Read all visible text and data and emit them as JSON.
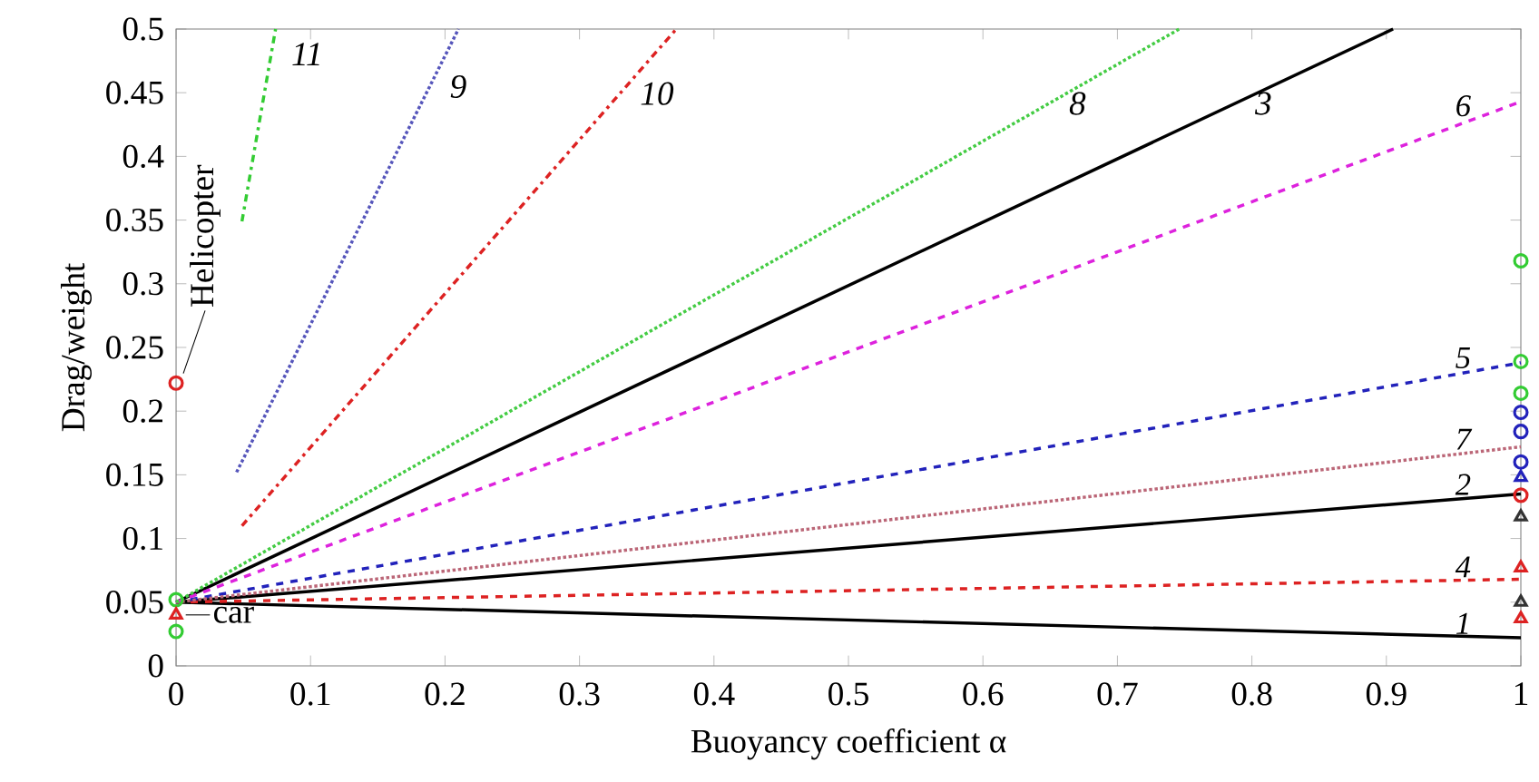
{
  "chart_data": {
    "type": "line",
    "xlabel": "Buoyancy coefficient α",
    "ylabel": "Drag/weight",
    "xlim": [
      0,
      1
    ],
    "ylim": [
      0,
      0.5
    ],
    "xticks": [
      0,
      0.1,
      0.2,
      0.3,
      0.4,
      0.5,
      0.6,
      0.7,
      0.8,
      0.9,
      1
    ],
    "yticks": [
      0,
      0.05,
      0.1,
      0.15,
      0.2,
      0.25,
      0.3,
      0.35,
      0.4,
      0.45,
      0.5
    ],
    "grid": false,
    "series": [
      {
        "name": "1",
        "color": "#000000",
        "line_style": "solid",
        "x": [
          0,
          1
        ],
        "values": [
          0.05,
          0.022
        ]
      },
      {
        "name": "2",
        "color": "#000000",
        "line_style": "solid",
        "x": [
          0,
          1
        ],
        "values": [
          0.05,
          0.135
        ]
      },
      {
        "name": "3",
        "color": "#000000",
        "line_style": "solid",
        "x": [
          0,
          0.905
        ],
        "values": [
          0.05,
          0.5
        ]
      },
      {
        "name": "4",
        "color": "#dd2222",
        "line_style": "dashed",
        "x": [
          0,
          1
        ],
        "values": [
          0.05,
          0.068
        ]
      },
      {
        "name": "5",
        "color": "#2222bb",
        "line_style": "dashed",
        "x": [
          0,
          1
        ],
        "values": [
          0.05,
          0.238
        ]
      },
      {
        "name": "6",
        "color": "#dd22dd",
        "line_style": "dashed",
        "x": [
          0,
          1
        ],
        "values": [
          0.05,
          0.443
        ]
      },
      {
        "name": "7",
        "color": "#bb6677",
        "line_style": "dotted",
        "x": [
          0,
          1
        ],
        "values": [
          0.05,
          0.172
        ]
      },
      {
        "name": "8",
        "color": "#44cc44",
        "line_style": "dotted",
        "x": [
          0,
          0.746
        ],
        "values": [
          0.05,
          0.5
        ]
      },
      {
        "name": "9",
        "color": "#5555bb",
        "line_style": "dotted",
        "x": [
          0.045,
          0.21
        ],
        "values": [
          0.152,
          0.5
        ]
      },
      {
        "name": "10",
        "color": "#dd2222",
        "line_style": "dash-dot",
        "x": [
          0.049,
          0.372
        ],
        "values": [
          0.11,
          0.5
        ]
      },
      {
        "name": "11",
        "color": "#33cc33",
        "line_style": "dash-dot",
        "x": [
          0.049,
          0.074
        ],
        "values": [
          0.349,
          0.5
        ]
      },
      {
        "type": "scatter",
        "color": "#33cc33",
        "marker": "circle",
        "x": [
          0,
          0,
          1,
          1,
          1
        ],
        "values": [
          0.052,
          0.027,
          0.318,
          0.239,
          0.214
        ]
      },
      {
        "type": "scatter",
        "color": "#dd2222",
        "marker": "circle",
        "x": [
          0,
          1
        ],
        "values": [
          0.222,
          0.134
        ]
      },
      {
        "type": "scatter",
        "color": "#2222bb",
        "marker": "circle",
        "x": [
          1,
          1,
          1
        ],
        "values": [
          0.199,
          0.184,
          0.16
        ]
      },
      {
        "type": "scatter",
        "color": "#2222bb",
        "marker": "triangle",
        "x": [
          1
        ],
        "values": [
          0.148
        ]
      },
      {
        "type": "scatter",
        "color": "#333333",
        "marker": "triangle",
        "x": [
          1,
          1
        ],
        "values": [
          0.117,
          0.05
        ]
      },
      {
        "type": "scatter",
        "color": "#dd2222",
        "marker": "triangle",
        "x": [
          0,
          1,
          1
        ],
        "values": [
          0.04,
          0.077,
          0.037
        ]
      }
    ],
    "annotations": [
      {
        "text": "Helicopter",
        "x": 0,
        "y": 0.222
      },
      {
        "text": "car",
        "x": 0,
        "y": 0.04
      }
    ]
  }
}
